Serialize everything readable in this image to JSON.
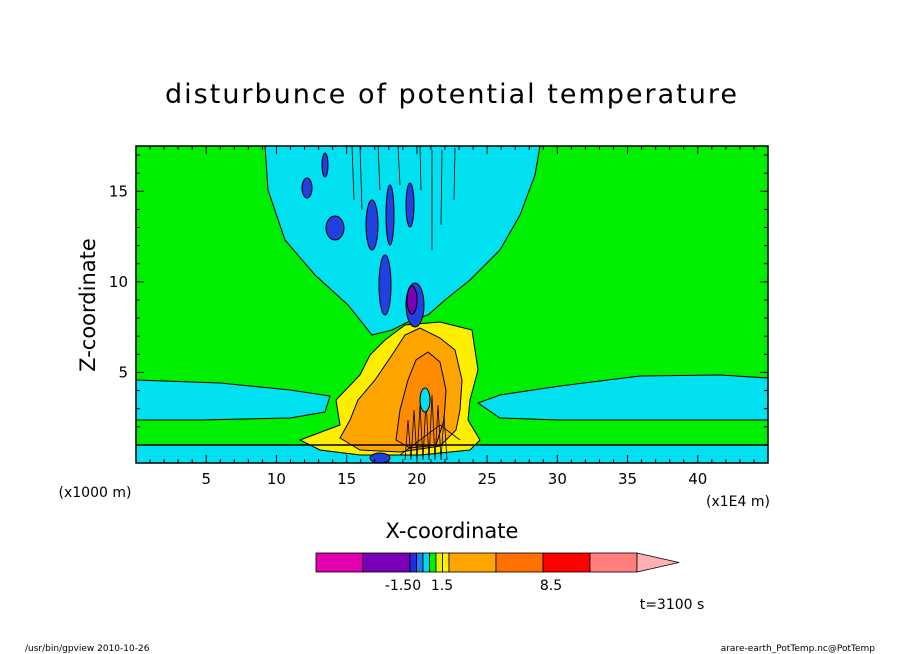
{
  "chart_data": {
    "type": "heatmap",
    "title": "disturbunce of potential temperature",
    "xlabel": "X-coordinate",
    "ylabel": "Z-coordinate",
    "x_unit_left": "(x1000 m)",
    "x_unit_right": "(x1E4 m)",
    "xlim": [
      0,
      45
    ],
    "ylim": [
      0,
      17.5
    ],
    "xticks": [
      "5",
      "10",
      "15",
      "20",
      "25",
      "30",
      "35",
      "40"
    ],
    "yticks": [
      "5",
      "10",
      "15"
    ],
    "colorbar": {
      "colors": [
        "#e000b0",
        "#7a00b8",
        "#1e2ee0",
        "#2b78ee",
        "#00d8f0",
        "#00ee00",
        "#e6f000",
        "#ffee00",
        "#ffa500",
        "#ff7000",
        "#ff0000",
        "#ff7f7f",
        "#ffb0b0"
      ],
      "labels": [
        "-1.50",
        "1.5",
        "8.5"
      ]
    },
    "time_label": "t=3100 s"
  },
  "footer": {
    "left": "/usr/bin/gpview   2010-10-26",
    "right": "arare-earth_PotTemp.nc@PotTemp"
  },
  "colors": {
    "background_field": "#00ee00",
    "cool": "#00e0f0",
    "cold": "#2040e0",
    "coldest": "#7a00b8",
    "warm": "#ffee00",
    "warmer": "#ffa500",
    "hot": "#ff7000"
  }
}
